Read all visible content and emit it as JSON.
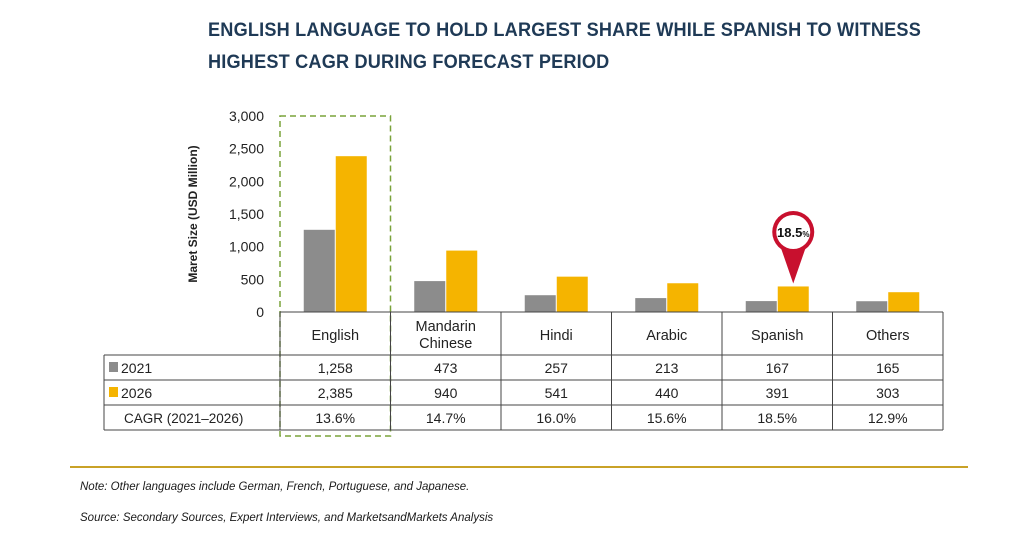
{
  "title_line1": "ENGLISH LANGUAGE TO HOLD LARGEST SHARE WHILE SPANISH TO WITNESS",
  "title_line2": "HIGHEST CAGR DURING FORECAST PERIOD",
  "note": "Note: Other languages include German, French, Portuguese, and Japanese.",
  "source": "Source: Secondary Sources, Expert Interviews, and MarketsandMarkets Analysis",
  "colors": {
    "s2021": "#8c8c8c",
    "s2026": "#f5b400",
    "title": "#1f3a56",
    "highlight_box": "#7aa33a",
    "callout": "#c8102e",
    "separator": "#c9a227"
  },
  "chart_data": {
    "type": "bar",
    "ylabel": "Maret Size (USD Million)",
    "ylim": [
      0,
      3000
    ],
    "yticks": [
      "0",
      "500",
      "1,000",
      "1,500",
      "2,000",
      "2,500",
      "3,000"
    ],
    "categories": [
      [
        "English"
      ],
      [
        "Mandarin",
        "Chinese"
      ],
      [
        "Hindi"
      ],
      [
        "Arabic"
      ],
      [
        "Spanish"
      ],
      [
        "Others"
      ]
    ],
    "series": [
      {
        "name": "2021",
        "values": [
          1258,
          473,
          257,
          213,
          167,
          165
        ],
        "labels": [
          "1,258",
          "473",
          "257",
          "213",
          "167",
          "165"
        ]
      },
      {
        "name": "2026",
        "values": [
          2385,
          940,
          541,
          440,
          391,
          303
        ],
        "labels": [
          "2,385",
          "940",
          "541",
          "440",
          "391",
          "303"
        ]
      }
    ],
    "cagr_row_label": "CAGR (2021–2026)",
    "cagr": [
      "13.6%",
      "14.7%",
      "16.0%",
      "15.6%",
      "18.5%",
      "12.9%"
    ],
    "callout": {
      "category_index": 4,
      "text": "18.5",
      "unit": "%"
    },
    "highlight_category_index": 0
  }
}
